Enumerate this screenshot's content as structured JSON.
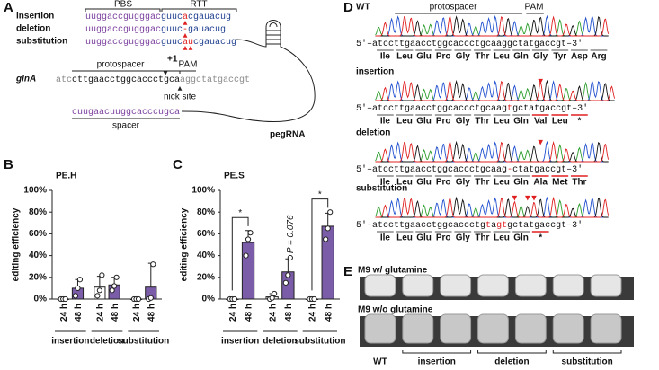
{
  "panel_labels": {
    "a": "A",
    "b": "B",
    "c": "C",
    "d": "D",
    "e": "E"
  },
  "panel_a": {
    "pbs": "PBS",
    "rtt": "RTT",
    "rows": [
      {
        "label": "insertion",
        "segments": [
          {
            "text": "uuggaccgugggac",
            "color": "#7b3f9e"
          },
          {
            "text": "guuc",
            "color": "#1f3f8f"
          },
          {
            "text": "a",
            "color": "#e02020"
          },
          {
            "text": "cgauacug",
            "color": "#1f3f8f"
          }
        ]
      },
      {
        "label": "deletion",
        "segments": [
          {
            "text": "uuggaccgugggac",
            "color": "#7b3f9e"
          },
          {
            "text": "guuc",
            "color": "#1f3f8f"
          },
          {
            "text": "-",
            "color": "#e02020"
          },
          {
            "text": "gauacug",
            "color": "#1f3f8f"
          }
        ]
      },
      {
        "label": "substitution",
        "segments": [
          {
            "text": "uuggaccgugggac",
            "color": "#7b3f9e"
          },
          {
            "text": "guuc",
            "color": "#1f3f8f"
          },
          {
            "text": "au",
            "color": "#e02020"
          },
          {
            "text": "cgauacug",
            "color": "#1f3f8f"
          }
        ]
      }
    ],
    "plus_one": "+1",
    "protospacer": "protospacer",
    "pam": "PAM",
    "gene": "glnA",
    "target": [
      {
        "text": "atc",
        "color": "#8a8a8a"
      },
      {
        "text": "cttgaacctggcaccctgca",
        "color": "#111111"
      },
      {
        "text": "aggctatgaccgt",
        "color": "#8a8a8a"
      }
    ],
    "nick_site": "nick site",
    "spacer_seq": [
      {
        "text": "cuugaacuuggcacccugca",
        "color": "#7b3f9e"
      }
    ],
    "spacer": "spacer",
    "pegrna": "pegRNA"
  },
  "chart_data": [
    {
      "type": "bar",
      "title": "PE.H",
      "y_label": "editing efficiency",
      "categories": [
        "insertion",
        "deletion",
        "substitution"
      ],
      "series": [
        {
          "name": "24 h",
          "color": "#ffffff",
          "values": [
            0,
            11,
            0
          ],
          "errors": [
            0,
            10,
            0
          ],
          "points": [
            [
              0,
              0,
              0
            ],
            [
              3,
              8,
              22
            ],
            [
              0,
              0,
              0
            ]
          ]
        },
        {
          "name": "48 h",
          "color": "#7a5ca8",
          "values": [
            10,
            13,
            11
          ],
          "errors": [
            8,
            7,
            22
          ],
          "points": [
            [
              3,
              10,
              18
            ],
            [
              8,
              12,
              20
            ],
            [
              0,
              1,
              32
            ]
          ]
        }
      ],
      "ylim": [
        0,
        100
      ],
      "yticks": [
        {
          "value": 0,
          "label": "0%"
        },
        {
          "value": 20,
          "label": "20%"
        },
        {
          "value": 40,
          "label": "40%"
        },
        {
          "value": 60,
          "label": "60%"
        },
        {
          "value": 80,
          "label": "80%"
        },
        {
          "value": 100,
          "label": "100%"
        }
      ]
    },
    {
      "type": "bar",
      "title": "PE.S",
      "y_label": "editing efficiency",
      "categories": [
        "insertion",
        "deletion",
        "substitution"
      ],
      "series": [
        {
          "name": "24 h",
          "color": "#ffffff",
          "values": [
            0,
            2,
            0
          ],
          "errors": [
            0,
            3,
            0
          ],
          "points": [
            [
              0,
              0,
              0
            ],
            [
              0,
              1,
              5
            ],
            [
              0,
              0,
              0
            ]
          ]
        },
        {
          "name": "48 h",
          "color": "#7a5ca8",
          "values": [
            52,
            25,
            67
          ],
          "errors": [
            11,
            12,
            12
          ],
          "points": [
            [
              40,
              55,
              61
            ],
            [
              15,
              22,
              38
            ],
            [
              55,
              65,
              80
            ]
          ]
        }
      ],
      "annotations": [
        "*",
        "P = 0.076",
        "*"
      ],
      "ylim": [
        0,
        100
      ],
      "yticks": [
        {
          "value": 0,
          "label": "0%"
        },
        {
          "value": 20,
          "label": "20%"
        },
        {
          "value": 40,
          "label": "40%"
        },
        {
          "value": 60,
          "label": "60%"
        },
        {
          "value": 80,
          "label": "80%"
        },
        {
          "value": 100,
          "label": "100%"
        }
      ]
    }
  ],
  "panel_d": {
    "protospacer": "protospacer",
    "pam": "PAM",
    "five_prime": "5'–",
    "three_prime": "–3'",
    "rows": [
      {
        "label": "WT",
        "sequence": [
          {
            "text": "atccttgaacctggcaccctgcaaggctatgaccgt",
            "color": "#111111"
          }
        ],
        "amino_acids": [
          {
            "text": "Ile",
            "color": "#8a8a8a"
          },
          {
            "text": "Leu",
            "color": "#8a8a8a"
          },
          {
            "text": "Glu",
            "color": "#8a8a8a"
          },
          {
            "text": "Pro",
            "color": "#8a8a8a"
          },
          {
            "text": "Gly",
            "color": "#8a8a8a"
          },
          {
            "text": "Thr",
            "color": "#8a8a8a"
          },
          {
            "text": "Leu",
            "color": "#8a8a8a"
          },
          {
            "text": "Gln",
            "color": "#8a8a8a"
          },
          {
            "text": "Gly",
            "color": "#8a8a8a"
          },
          {
            "text": "Tyr",
            "color": "#8a8a8a"
          },
          {
            "text": "Asp",
            "color": "#8a8a8a"
          },
          {
            "text": "Arg",
            "color": "#8a8a8a"
          }
        ]
      },
      {
        "label": "insertion",
        "sequence": [
          {
            "text": "atccttgaacctggcaccctgcaag",
            "color": "#111111"
          },
          {
            "text": "t",
            "color": "#e02020"
          },
          {
            "text": "gctatgaccgt",
            "color": "#111111"
          }
        ],
        "amino_acids": [
          {
            "text": "Ile",
            "color": "#8a8a8a"
          },
          {
            "text": "Leu",
            "color": "#8a8a8a"
          },
          {
            "text": "Glu",
            "color": "#8a8a8a"
          },
          {
            "text": "Pro",
            "color": "#8a8a8a"
          },
          {
            "text": "Gly",
            "color": "#8a8a8a"
          },
          {
            "text": "Thr",
            "color": "#8a8a8a"
          },
          {
            "text": "Leu",
            "color": "#8a8a8a"
          },
          {
            "text": "Gln",
            "color": "#8a8a8a"
          },
          {
            "text": "Val",
            "color": "#e02020"
          },
          {
            "text": "Leu",
            "color": "#e02020"
          },
          {
            "text": "*",
            "color": "#e02020"
          }
        ]
      },
      {
        "label": "deletion",
        "sequence": [
          {
            "text": "atccttgaacctggcaccctgcaag",
            "color": "#111111"
          },
          {
            "text": "-",
            "color": "#e02020"
          },
          {
            "text": "ctatgaccgt",
            "color": "#111111"
          }
        ],
        "amino_acids": [
          {
            "text": "Ile",
            "color": "#8a8a8a"
          },
          {
            "text": "Leu",
            "color": "#8a8a8a"
          },
          {
            "text": "Glu",
            "color": "#8a8a8a"
          },
          {
            "text": "Pro",
            "color": "#8a8a8a"
          },
          {
            "text": "Gly",
            "color": "#8a8a8a"
          },
          {
            "text": "Thr",
            "color": "#8a8a8a"
          },
          {
            "text": "Leu",
            "color": "#8a8a8a"
          },
          {
            "text": "Gln",
            "color": "#8a8a8a"
          },
          {
            "text": "Ala",
            "color": "#e02020"
          },
          {
            "text": "Met",
            "color": "#e02020"
          },
          {
            "text": "Thr",
            "color": "#e02020"
          }
        ]
      },
      {
        "label": "substitution",
        "sequence": [
          {
            "text": "atccttgaacctggcaccctg",
            "color": "#111111"
          },
          {
            "text": "t",
            "color": "#e02020"
          },
          {
            "text": "a",
            "color": "#111111"
          },
          {
            "text": "gt",
            "color": "#e02020"
          },
          {
            "text": "gctatgaccgt",
            "color": "#111111"
          }
        ],
        "amino_acids": [
          {
            "text": "Ile",
            "color": "#8a8a8a"
          },
          {
            "text": "Leu",
            "color": "#8a8a8a"
          },
          {
            "text": "Glu",
            "color": "#8a8a8a"
          },
          {
            "text": "Pro",
            "color": "#8a8a8a"
          },
          {
            "text": "Gly",
            "color": "#8a8a8a"
          },
          {
            "text": "Thr",
            "color": "#8a8a8a"
          },
          {
            "text": "Leu",
            "color": "#8a8a8a"
          },
          {
            "text": "Gln",
            "color": "#8a8a8a"
          },
          {
            "text": "*",
            "color": "#e02020"
          }
        ]
      }
    ]
  },
  "panel_e": {
    "conditions": [
      "M9 w/ glutamine",
      "M9 w/o glutamine"
    ],
    "strains": [
      "WT",
      "insertion",
      "deletion",
      "substitution"
    ]
  }
}
